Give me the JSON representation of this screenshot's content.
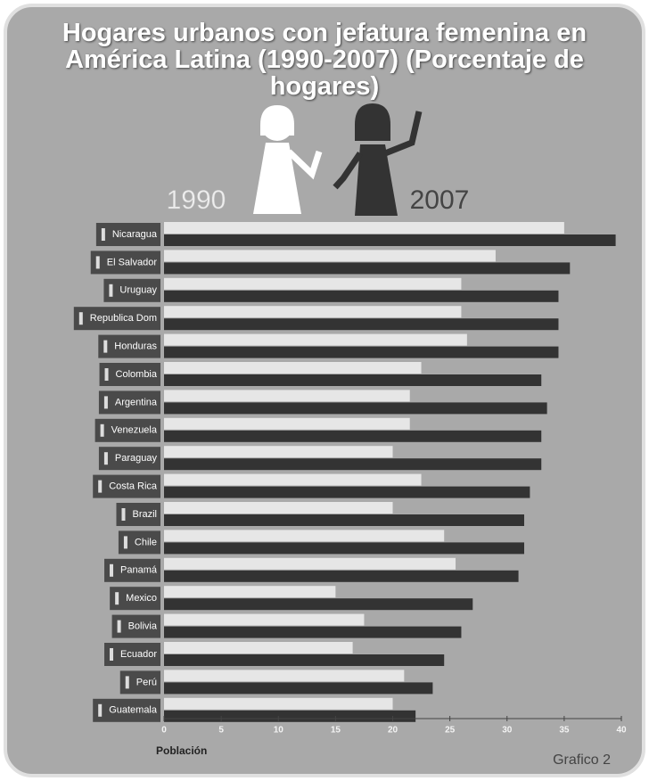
{
  "chart_data": {
    "type": "hbar",
    "title": "Hogares urbanos con jefatura femenina en América Latina (1990-2007) (Porcentaje de hogares)",
    "categories": [
      "Nicaragua",
      "El Salvador",
      "Uruguay",
      "Republica Dom",
      "Honduras",
      "Colombia",
      "Argentina",
      "Venezuela",
      "Paraguay",
      "Costa Rica",
      "Brazil",
      "Chile",
      "Panamá",
      "Mexico",
      "Bolivia",
      "Ecuador",
      "Perú",
      "Guatemala"
    ],
    "series": [
      {
        "name": "1990",
        "color": "#e6e6e6",
        "values": [
          35,
          29,
          26,
          26,
          26.5,
          22.5,
          21.5,
          21.5,
          20,
          22.5,
          20,
          24.5,
          25.5,
          15,
          17.5,
          16.5,
          21,
          20
        ]
      },
      {
        "name": "2007",
        "color": "#333333",
        "values": [
          39.5,
          35.5,
          34.5,
          34.5,
          34.5,
          33,
          33.5,
          33,
          33,
          32,
          31.5,
          31.5,
          31,
          27,
          26,
          24.5,
          23.5,
          22
        ]
      }
    ],
    "xlim": [
      0,
      40
    ],
    "xticks": [
      0,
      5,
      10,
      15,
      20,
      25,
      30,
      35,
      40
    ],
    "xlabel": "Población",
    "note": "Grafico 2"
  }
}
